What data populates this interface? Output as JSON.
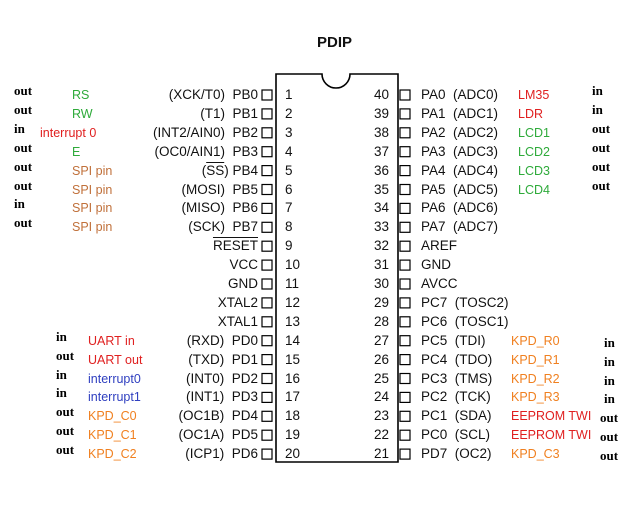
{
  "package": "PDIP",
  "left_pins": [
    {
      "num": "1",
      "name": "(XCK/T0)  PB0",
      "dir": "out",
      "note": "RS",
      "note_color": "#2eaa3a"
    },
    {
      "num": "2",
      "name": "(T1)  PB1",
      "dir": "out",
      "note": "RW",
      "note_color": "#2eaa3a"
    },
    {
      "num": "3",
      "name": "(INT2/AIN0)  PB2",
      "dir": "in",
      "note": "interrupt 0",
      "note_color": "#e02020"
    },
    {
      "num": "4",
      "name": "(OC0/AIN1)  PB3",
      "dir": "out",
      "note": "E",
      "note_color": "#2eaa3a"
    },
    {
      "num": "5",
      "name": "PB4",
      "dir": "out",
      "note": "SPI pin",
      "note_color": "#c0703a",
      "name_prefix": "(",
      "name_ov": "SS",
      "name_suffix": ")  "
    },
    {
      "num": "6",
      "name": "(MOSI)  PB5",
      "dir": "out",
      "note": "SPI pin",
      "note_color": "#c0703a"
    },
    {
      "num": "7",
      "name": "(MISO)  PB6",
      "dir": "in",
      "note": "SPI pin",
      "note_color": "#c0703a"
    },
    {
      "num": "8",
      "name": "(SCK)  PB7",
      "dir": "out",
      "note": "SPI pin",
      "note_color": "#c0703a"
    },
    {
      "num": "9",
      "name": "RESET",
      "dir": "",
      "note": "",
      "note_color": "#000000",
      "overline": true
    },
    {
      "num": "10",
      "name": "VCC",
      "dir": "",
      "note": "",
      "note_color": "#000000"
    },
    {
      "num": "11",
      "name": "GND",
      "dir": "",
      "note": "",
      "note_color": "#000000"
    },
    {
      "num": "12",
      "name": "XTAL2",
      "dir": "",
      "note": "",
      "note_color": "#000000"
    },
    {
      "num": "13",
      "name": "XTAL1",
      "dir": "",
      "note": "",
      "note_color": "#000000"
    },
    {
      "num": "14",
      "name": "(RXD)  PD0",
      "dir": "in",
      "note": "UART in",
      "note_color": "#e02020"
    },
    {
      "num": "15",
      "name": "(TXD)  PD1",
      "dir": "out",
      "note": "UART out",
      "note_color": "#e02020"
    },
    {
      "num": "16",
      "name": "(INT0)  PD2",
      "dir": "in",
      "note": "interrupt0",
      "note_color": "#3040c0"
    },
    {
      "num": "17",
      "name": "(INT1)  PD3",
      "dir": "in",
      "note": "interrupt1",
      "note_color": "#3040c0"
    },
    {
      "num": "18",
      "name": "(OC1B)  PD4",
      "dir": "out",
      "note": "KPD_C0",
      "note_color": "#f08020"
    },
    {
      "num": "19",
      "name": "(OC1A)  PD5",
      "dir": "out",
      "note": "KPD_C1",
      "note_color": "#f08020"
    },
    {
      "num": "20",
      "name": "(ICP1)  PD6",
      "dir": "out",
      "note": "KPD_C2",
      "note_color": "#f08020"
    }
  ],
  "right_pins": [
    {
      "num": "40",
      "name": "PA0  (ADC0)",
      "dir": "in",
      "note": "LM35",
      "note_color": "#e02020"
    },
    {
      "num": "39",
      "name": "PA1  (ADC1)",
      "dir": "in",
      "note": "LDR",
      "note_color": "#e02020"
    },
    {
      "num": "38",
      "name": "PA2  (ADC2)",
      "dir": "out",
      "note": "LCD1",
      "note_color": "#2eaa3a"
    },
    {
      "num": "37",
      "name": "PA3  (ADC3)",
      "dir": "out",
      "note": "LCD2",
      "note_color": "#2eaa3a"
    },
    {
      "num": "36",
      "name": "PA4  (ADC4)",
      "dir": "out",
      "note": "LCD3",
      "note_color": "#2eaa3a"
    },
    {
      "num": "35",
      "name": "PA5  (ADC5)",
      "dir": "out",
      "note": "LCD4",
      "note_color": "#2eaa3a"
    },
    {
      "num": "34",
      "name": "PA6  (ADC6)",
      "dir": "",
      "note": "",
      "note_color": "#000000"
    },
    {
      "num": "33",
      "name": "PA7  (ADC7)",
      "dir": "",
      "note": "",
      "note_color": "#000000"
    },
    {
      "num": "32",
      "name": "AREF",
      "dir": "",
      "note": "",
      "note_color": "#000000"
    },
    {
      "num": "31",
      "name": "GND",
      "dir": "",
      "note": "",
      "note_color": "#000000"
    },
    {
      "num": "30",
      "name": "AVCC",
      "dir": "",
      "note": "",
      "note_color": "#000000"
    },
    {
      "num": "29",
      "name": "PC7  (TOSC2)",
      "dir": "",
      "note": "",
      "note_color": "#000000"
    },
    {
      "num": "28",
      "name": "PC6  (TOSC1)",
      "dir": "",
      "note": "",
      "note_color": "#000000"
    },
    {
      "num": "27",
      "name": "PC5  (TDI)",
      "dir": "in",
      "note": "KPD_R0",
      "note_color": "#f08020"
    },
    {
      "num": "26",
      "name": "PC4  (TDO)",
      "dir": "in",
      "note": "KPD_R1",
      "note_color": "#f08020"
    },
    {
      "num": "25",
      "name": "PC3  (TMS)",
      "dir": "in",
      "note": "KPD_R2",
      "note_color": "#f08020"
    },
    {
      "num": "24",
      "name": "PC2  (TCK)",
      "dir": "in",
      "note": "KPD_R3",
      "note_color": "#f08020"
    },
    {
      "num": "23",
      "name": "PC1  (SDA)",
      "dir": "out",
      "note": "EEPROM TWI",
      "note_color": "#e02020"
    },
    {
      "num": "22",
      "name": "PC0  (SCL)",
      "dir": "out",
      "note": "EEPROM TWI",
      "note_color": "#e02020"
    },
    {
      "num": "21",
      "name": "PD7  (OC2)",
      "dir": "out",
      "note": "KPD_C3",
      "note_color": "#f08020"
    }
  ]
}
